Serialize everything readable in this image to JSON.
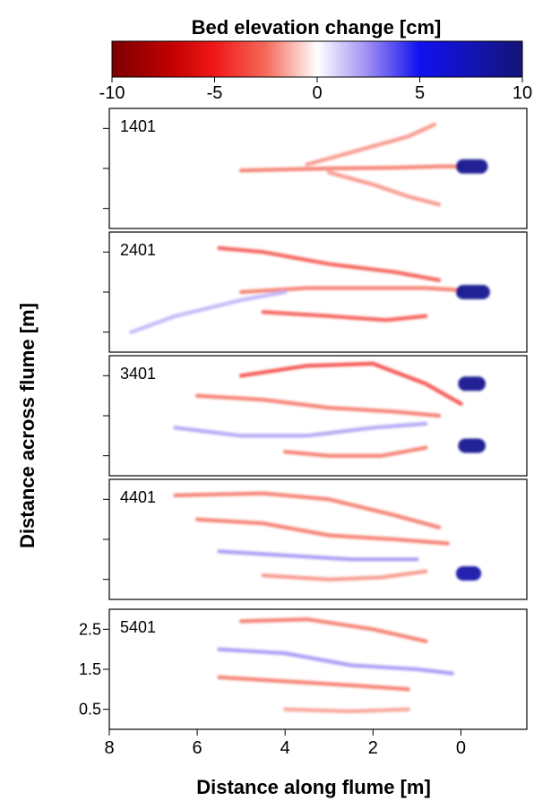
{
  "chart_data": {
    "type": "heatmap",
    "title": "Bed elevation change [cm]",
    "colorbar": {
      "range": [
        -10,
        10
      ],
      "ticks": [
        -10,
        -5,
        0,
        5,
        10
      ],
      "tick_labels": [
        "-10",
        "-5",
        "0",
        "5",
        "10"
      ],
      "stops": [
        {
          "value": -10,
          "color": "#7a0000"
        },
        {
          "value": -7,
          "color": "#c40000"
        },
        {
          "value": -5,
          "color": "#f01818"
        },
        {
          "value": -2.5,
          "color": "#f46a5a"
        },
        {
          "value": 0,
          "color": "#ffffff"
        },
        {
          "value": 2.5,
          "color": "#9c8cf2"
        },
        {
          "value": 5,
          "color": "#1010f0"
        },
        {
          "value": 7.5,
          "color": "#1414b4"
        },
        {
          "value": 10,
          "color": "#141478"
        }
      ]
    },
    "xlabel": "Distance along flume [m]",
    "ylabel": "Distance across flume [m]",
    "xlim": [
      8,
      -1.5
    ],
    "xticks": [
      8,
      6,
      4,
      2,
      0
    ],
    "xtick_labels": [
      "8",
      "6",
      "4",
      "2",
      "0"
    ],
    "ylim": [
      0,
      3
    ],
    "yticks": [
      0.5,
      1.5,
      2.5
    ],
    "ytick_labels": [
      "0.5",
      "1.5",
      "2.5"
    ],
    "panels": [
      {
        "label": "1401"
      },
      {
        "label": "2401"
      },
      {
        "label": "3401"
      },
      {
        "label": "4401"
      },
      {
        "label": "5401"
      }
    ],
    "features": [
      [
        {
          "x": [
            5.0,
            3.0,
            1.5,
            0.5,
            0.0
          ],
          "y": [
            1.45,
            1.5,
            1.52,
            1.55,
            1.55
          ],
          "value": -2.5
        },
        {
          "x": [
            3.5,
            2.5,
            1.2,
            0.6
          ],
          "y": [
            1.6,
            1.9,
            2.3,
            2.6
          ],
          "value": -2
        },
        {
          "x": [
            3.0,
            2.0,
            1.2,
            0.5
          ],
          "y": [
            1.4,
            1.1,
            0.8,
            0.6
          ],
          "value": -2
        },
        {
          "x": [
            -0.05,
            -0.45
          ],
          "y": [
            1.55,
            1.55
          ],
          "value": 9
        }
      ],
      [
        {
          "x": [
            5.5,
            4.5,
            3.0,
            1.5,
            0.5
          ],
          "y": [
            2.6,
            2.5,
            2.2,
            2.0,
            1.8
          ],
          "value": -3.5
        },
        {
          "x": [
            5.0,
            3.5,
            2.0,
            0.8,
            0.0
          ],
          "y": [
            1.5,
            1.6,
            1.6,
            1.6,
            1.55
          ],
          "value": -2.5
        },
        {
          "x": [
            4.5,
            3.0,
            1.7,
            0.8
          ],
          "y": [
            1.0,
            0.9,
            0.8,
            0.9
          ],
          "value": -3.5
        },
        {
          "x": [
            7.5,
            6.5,
            5.0,
            4.0
          ],
          "y": [
            0.5,
            0.9,
            1.3,
            1.5
          ],
          "value": 1.8
        },
        {
          "x": [
            -0.05,
            -0.5
          ],
          "y": [
            1.5,
            1.5
          ],
          "value": 9
        }
      ],
      [
        {
          "x": [
            5.0,
            3.5,
            2.0,
            0.8,
            0.0
          ],
          "y": [
            2.5,
            2.75,
            2.8,
            2.3,
            1.8
          ],
          "value": -4
        },
        {
          "x": [
            6.0,
            4.5,
            3.0,
            1.5,
            0.5
          ],
          "y": [
            2.0,
            1.9,
            1.7,
            1.6,
            1.5
          ],
          "value": -2.5
        },
        {
          "x": [
            6.5,
            5.0,
            3.5,
            2.0,
            0.8
          ],
          "y": [
            1.2,
            1.0,
            1.0,
            1.2,
            1.3
          ],
          "value": 2.2
        },
        {
          "x": [
            4.0,
            3.0,
            1.8,
            0.8
          ],
          "y": [
            0.6,
            0.5,
            0.5,
            0.7
          ],
          "value": -2.5
        },
        {
          "x": [
            -0.1,
            -0.4
          ],
          "y": [
            2.3,
            2.3
          ],
          "value": 9
        },
        {
          "x": [
            -0.1,
            -0.4
          ],
          "y": [
            0.75,
            0.75
          ],
          "value": 9
        }
      ],
      [
        {
          "x": [
            6.5,
            4.5,
            3.0,
            1.5,
            0.5
          ],
          "y": [
            2.6,
            2.65,
            2.5,
            2.1,
            1.8
          ],
          "value": -2.5
        },
        {
          "x": [
            6.0,
            4.5,
            3.0,
            1.5,
            0.3
          ],
          "y": [
            2.0,
            1.9,
            1.6,
            1.5,
            1.4
          ],
          "value": -2.5
        },
        {
          "x": [
            5.5,
            4.0,
            2.5,
            1.0
          ],
          "y": [
            1.2,
            1.1,
            1.0,
            1.0
          ],
          "value": 2.5
        },
        {
          "x": [
            4.5,
            3.0,
            1.8,
            0.8
          ],
          "y": [
            0.6,
            0.5,
            0.55,
            0.7
          ],
          "value": -2
        },
        {
          "x": [
            -0.05,
            -0.3
          ],
          "y": [
            0.65,
            0.65
          ],
          "value": 8
        }
      ],
      [
        {
          "x": [
            5.0,
            3.5,
            2.0,
            0.8
          ],
          "y": [
            2.7,
            2.75,
            2.5,
            2.2
          ],
          "value": -2.5
        },
        {
          "x": [
            5.5,
            4.0,
            2.5,
            1.0,
            0.2
          ],
          "y": [
            2.0,
            1.9,
            1.6,
            1.5,
            1.4
          ],
          "value": 2.5
        },
        {
          "x": [
            5.5,
            4.0,
            2.5,
            1.2
          ],
          "y": [
            1.3,
            1.2,
            1.1,
            1.0
          ],
          "value": -2.5
        },
        {
          "x": [
            4.0,
            2.5,
            1.2
          ],
          "y": [
            0.5,
            0.45,
            0.5
          ],
          "value": -1.8
        }
      ]
    ]
  }
}
